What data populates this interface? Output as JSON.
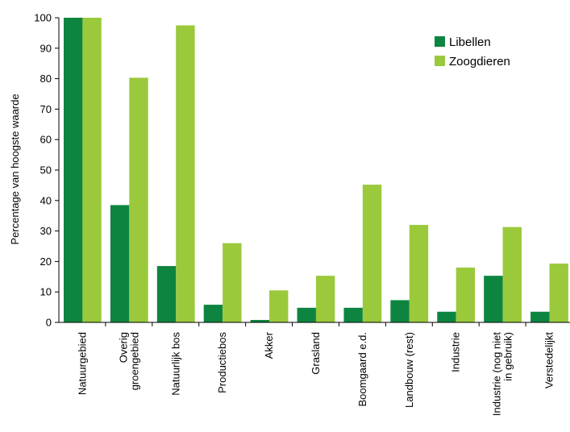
{
  "chart_data": {
    "type": "bar",
    "title": "",
    "xlabel": "",
    "ylabel": "Percentage van hoogste waarde",
    "ylim": [
      0,
      100
    ],
    "yticks": [
      0,
      10,
      20,
      30,
      40,
      50,
      60,
      70,
      80,
      90,
      100
    ],
    "grid": false,
    "legend_position": "top-right",
    "categories": [
      [
        "Natuurgebied"
      ],
      [
        "Overig",
        "groengebied"
      ],
      [
        "Natuurlijk bos"
      ],
      [
        "Productiebos"
      ],
      [
        "Akker"
      ],
      [
        "Grasland"
      ],
      [
        "Boomgaard e.d."
      ],
      [
        "Landbouw (rest)"
      ],
      [
        "Industrie"
      ],
      [
        "Industrie (nog niet",
        "in gebruik)"
      ],
      [
        "Verstedelijkt"
      ]
    ],
    "series": [
      {
        "name": "Libellen",
        "color": "#0d8540",
        "values": [
          100,
          38.5,
          18.5,
          5.8,
          0.8,
          4.8,
          4.8,
          7.3,
          3.5,
          15.3,
          3.5
        ]
      },
      {
        "name": "Zoogdieren",
        "color": "#9ac93c",
        "values": [
          100,
          80.3,
          97.5,
          26,
          10.5,
          15.3,
          45.2,
          32,
          18,
          31.3,
          19.3
        ]
      }
    ]
  }
}
